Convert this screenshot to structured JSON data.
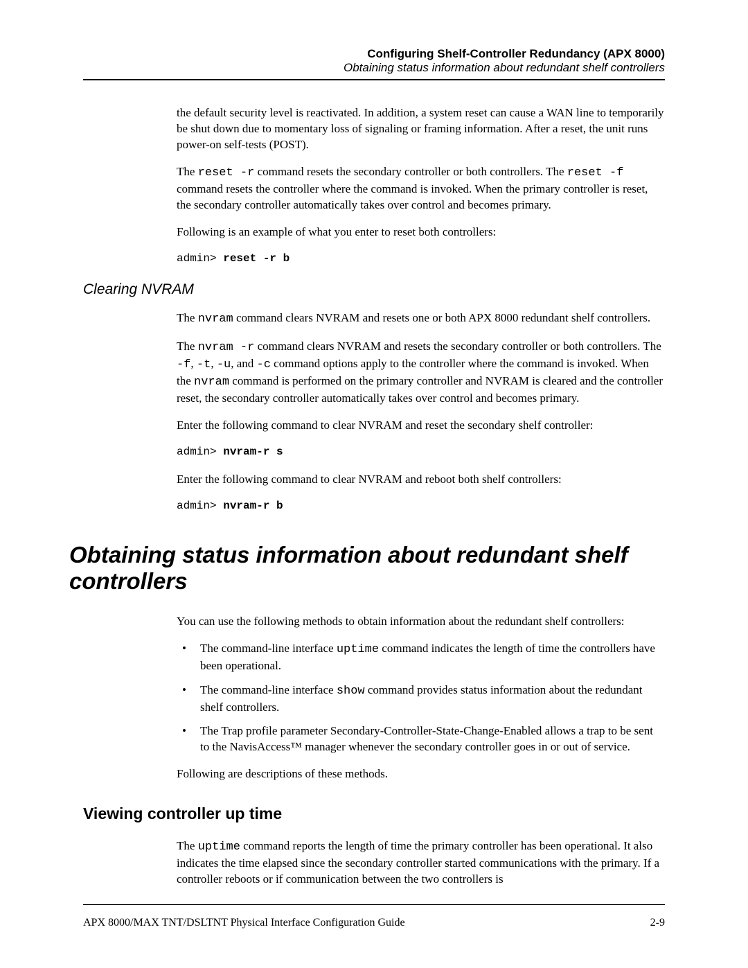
{
  "header": {
    "title": "Configuring Shelf-Controller Redundancy (APX 8000)",
    "subtitle": "Obtaining status information about redundant shelf controllers"
  },
  "intro": {
    "p1a": "the default security level is reactivated. In addition, a system reset can cause a WAN line to temporarily be shut down due to momentary loss of signaling or framing information. After a reset, the unit runs power-on self-tests (POST).",
    "p2_pre": "The ",
    "p2_cmd1": "reset -r",
    "p2_mid": " command resets the secondary controller or both controllers. The ",
    "p2_cmd2": "reset -f",
    "p2_post": " command resets the controller where the command is invoked. When the primary controller is reset, the secondary controller automatically takes over control and becomes primary.",
    "p3": "Following is an example of what you enter to reset both controllers:",
    "cmd_prompt": "admin> ",
    "cmd_bold": "reset -r b"
  },
  "nvram": {
    "heading": "Clearing NVRAM",
    "p1_pre": "The ",
    "p1_cmd": "nvram",
    "p1_post": " command clears NVRAM and resets one or both APX 8000 redundant shelf controllers.",
    "p2_pre": "The ",
    "p2_cmd1": "nvram -r",
    "p2_mid1": " command clears NVRAM and resets the secondary controller or both controllers. The ",
    "p2_cmd2": "-f",
    "p2_c2s": ", ",
    "p2_cmd3": "-t",
    "p2_c3s": ", ",
    "p2_cmd4": "-u",
    "p2_c4s": ", and ",
    "p2_cmd5": "-c",
    "p2_mid2": " command options apply to the controller where the command is invoked. When the ",
    "p2_cmd6": "nvram",
    "p2_post": " command is performed on the primary controller and NVRAM is cleared and the controller reset, the secondary controller automatically takes over control and becomes primary.",
    "p3": "Enter the following command to clear NVRAM and reset the secondary shelf controller:",
    "cmd1_prompt": "admin> ",
    "cmd1_bold": "nvram-r s",
    "p4": "Enter the following command to clear NVRAM and reboot both shelf controllers:",
    "cmd2_prompt": "admin> ",
    "cmd2_bold": "nvram-r b"
  },
  "status": {
    "heading": "Obtaining status information about redundant shelf controllers",
    "intro": "You can use the following methods to obtain information about the redundant shelf controllers:",
    "b1_pre": "The command-line interface ",
    "b1_cmd": "uptime",
    "b1_post": " command indicates the length of time the controllers have been operational.",
    "b2_pre": "The command-line interface ",
    "b2_cmd": "show",
    "b2_post": " command provides status information about the redundant shelf controllers.",
    "b3": "The Trap profile parameter Secondary-Controller-State-Change-Enabled allows a trap to be sent to the NavisAccess™ manager whenever the secondary controller goes in or out of service.",
    "outro": "Following are descriptions of these methods."
  },
  "uptime": {
    "heading": "Viewing controller up time",
    "p1_pre": "The ",
    "p1_cmd": "uptime",
    "p1_post": " command reports the length of time the primary controller has been operational. It also indicates the time elapsed since the secondary controller started communications with the primary. If a controller reboots or if communication between the two controllers is"
  },
  "footer": {
    "left": "APX 8000/MAX TNT/DSLTNT Physical Interface Configuration Guide",
    "right": "2-9"
  }
}
